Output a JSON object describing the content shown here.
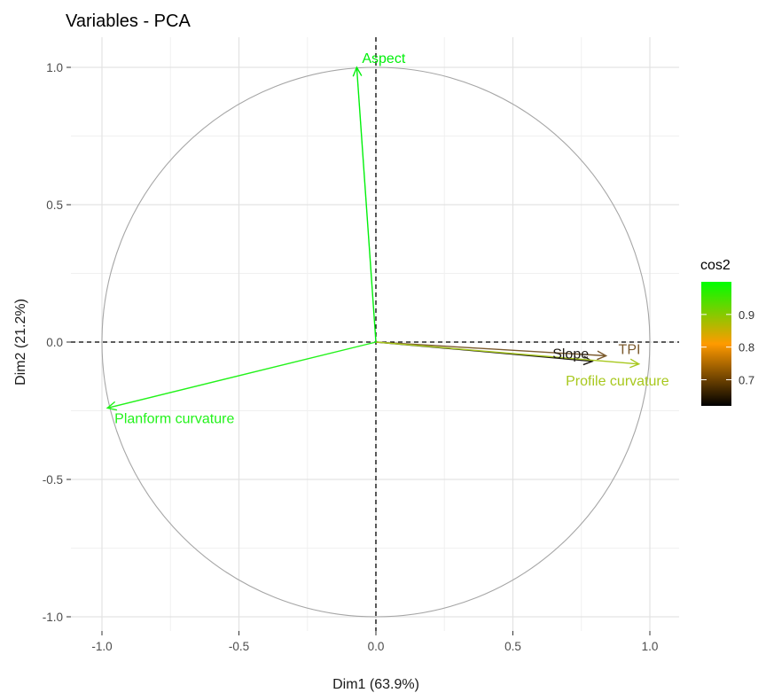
{
  "chart_data": {
    "type": "pca-variables-circle",
    "title": "Variables - PCA",
    "xlabel": "Dim1 (63.9%)",
    "ylabel": "Dim2 (21.2%)",
    "xlim": [
      -1.0,
      1.0
    ],
    "ylim": [
      -1.0,
      1.0
    ],
    "xticks": [
      -1.0,
      -0.5,
      0.0,
      0.5,
      1.0
    ],
    "yticks": [
      -1.0,
      -0.5,
      0.0,
      0.5,
      1.0
    ],
    "xtick_labels": [
      "-1.0",
      "-0.5",
      "0.0",
      "0.5",
      "1.0"
    ],
    "ytick_labels": [
      "-1.0",
      "-0.5",
      "0.0",
      "0.5",
      "1.0"
    ],
    "grid": true,
    "circle_color": "#a6a6a6",
    "reference_lines": [
      0
    ],
    "variables": [
      {
        "name": "Aspect",
        "x": -0.07,
        "y": 1.0,
        "cos2": 1.0,
        "color": "#00f00a"
      },
      {
        "name": "Planform curvature",
        "x": -0.98,
        "y": -0.24,
        "cos2": 0.99,
        "color": "#22f21a"
      },
      {
        "name": "TPI",
        "x": 0.84,
        "y": -0.05,
        "cos2": 0.71,
        "color": "#7b5a2d"
      },
      {
        "name": "Slope",
        "x": 0.79,
        "y": -0.07,
        "cos2": 0.63,
        "color": "#1f1a14"
      },
      {
        "name": "Profile curvature",
        "x": 0.96,
        "y": -0.08,
        "cos2": 0.93,
        "color": "#a8c81e"
      }
    ],
    "legend": {
      "title": "cos2",
      "placement": "right",
      "ticks": [
        0.7,
        0.8,
        0.9
      ],
      "tick_labels": [
        "0.7",
        "0.8",
        "0.9"
      ],
      "range": [
        0.62,
        1.0
      ],
      "gradient_colors": [
        "#000000",
        "#ff9a00",
        "#00ff00"
      ]
    }
  }
}
